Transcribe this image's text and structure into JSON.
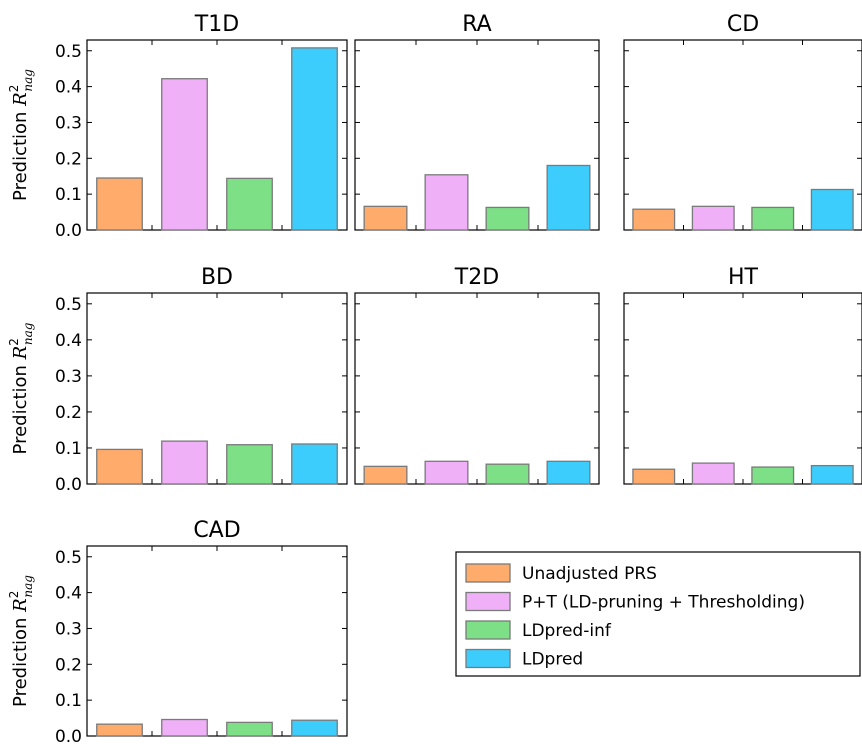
{
  "chart_data": {
    "type": "bar",
    "categories": [
      "Unadjusted PRS",
      "P+T (LD-pruning + Thresholding)",
      "LDpred-inf",
      "LDpred"
    ],
    "colors": [
      "#ffab6b",
      "#efb0f7",
      "#7ddf86",
      "#3dcdfc"
    ],
    "ylabel": {
      "prefix": "Prediction ",
      "symbol": "R",
      "superscript": "2",
      "subscript": "nag"
    },
    "ylim": [
      0,
      0.53
    ],
    "yticks": [
      "0.0",
      "0.1",
      "0.2",
      "0.3",
      "0.4",
      "0.5"
    ],
    "legend": {
      "position": "bottom-right",
      "entries": [
        "Unadjusted PRS",
        "P+T (LD-pruning + Thresholding)",
        "LDpred-inf",
        "LDpred"
      ]
    },
    "panels": [
      {
        "title": "T1D",
        "values": [
          0.145,
          0.422,
          0.144,
          0.508
        ]
      },
      {
        "title": "RA",
        "values": [
          0.066,
          0.154,
          0.063,
          0.18
        ]
      },
      {
        "title": "CD",
        "values": [
          0.058,
          0.066,
          0.063,
          0.113
        ]
      },
      {
        "title": "BD",
        "values": [
          0.096,
          0.119,
          0.109,
          0.111
        ]
      },
      {
        "title": "T2D",
        "values": [
          0.049,
          0.063,
          0.055,
          0.063
        ]
      },
      {
        "title": "HT",
        "values": [
          0.041,
          0.058,
          0.047,
          0.051
        ]
      },
      {
        "title": "CAD",
        "values": [
          0.033,
          0.046,
          0.038,
          0.044
        ]
      }
    ]
  }
}
